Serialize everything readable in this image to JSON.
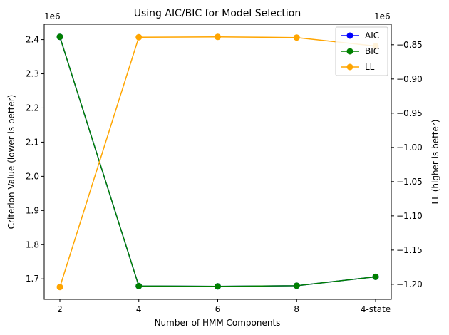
{
  "chart_data": {
    "type": "line",
    "title": "Using AIC/BIC for Model Selection",
    "xlabel": "Number of HMM Components",
    "categories": [
      "2",
      "4",
      "6",
      "8",
      "4-state"
    ],
    "left_axis": {
      "label": "Criterion Value (lower is better)",
      "multiplier_label": "1e6",
      "ticks": [
        1.7,
        1.8,
        1.9,
        2.0,
        2.1,
        2.2,
        2.3,
        2.4
      ],
      "tick_labels": [
        "1.7",
        "1.8",
        "1.9",
        "2.0",
        "2.1",
        "2.2",
        "2.3",
        "2.4"
      ],
      "ylim": [
        1.64,
        2.445
      ]
    },
    "right_axis": {
      "label": "LL (higher is better)",
      "multiplier_label": "1e6",
      "ticks": [
        -1.2,
        -1.15,
        -1.1,
        -1.05,
        -1.0,
        -0.95,
        -0.9,
        -0.85
      ],
      "tick_labels": [
        "−1.20",
        "−1.15",
        "−1.10",
        "−1.05",
        "−1.00",
        "−0.95",
        "−0.90",
        "−0.85"
      ],
      "ylim": [
        -1.222,
        -0.82
      ]
    },
    "series": [
      {
        "name": "AIC",
        "axis": "left",
        "color": "#0000ff",
        "values": [
          2.408,
          1.679,
          1.678,
          1.68,
          1.706
        ]
      },
      {
        "name": "BIC",
        "axis": "left",
        "color": "#008000",
        "values": [
          2.408,
          1.679,
          1.678,
          1.68,
          1.706
        ]
      },
      {
        "name": "LL",
        "axis": "right",
        "color": "#ffa500",
        "values": [
          -1.204,
          -0.839,
          -0.8385,
          -0.8395,
          -0.852
        ]
      }
    ],
    "legend": "top-right",
    "grid": false
  }
}
